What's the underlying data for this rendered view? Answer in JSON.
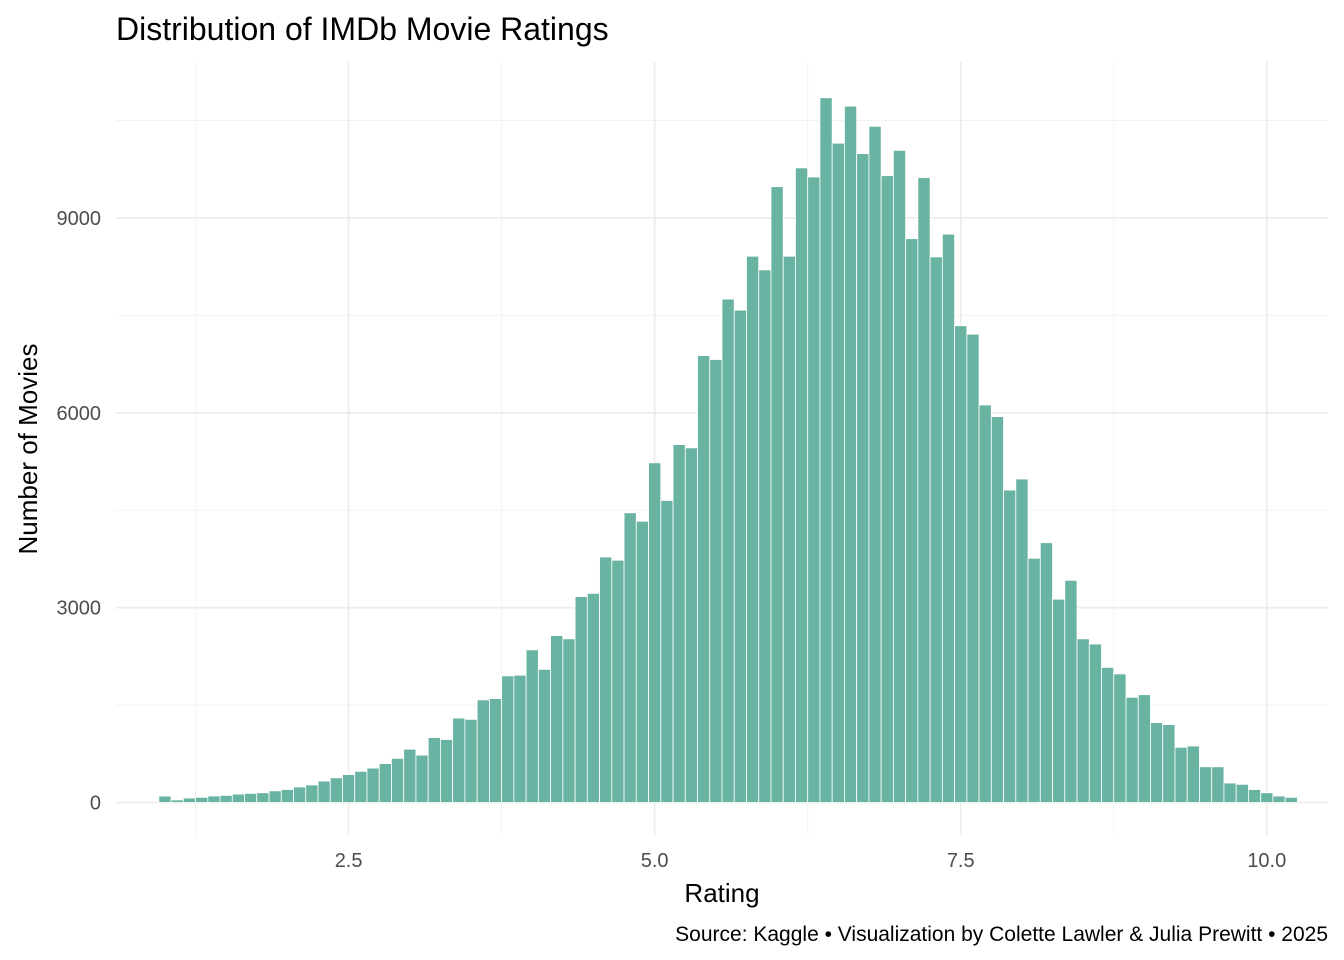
{
  "chart_data": {
    "type": "bar",
    "title": "Distribution of IMDb Movie Ratings",
    "xlabel": "Rating",
    "ylabel": "Number of Movies",
    "caption": "Source: Kaggle • Visualization by Colette Lawler & Julia Prewitt • 2025",
    "xlim": [
      0.6,
      10.5
    ],
    "ylim": [
      -500,
      11400
    ],
    "x_ticks": [
      2.5,
      5.0,
      7.5,
      10.0
    ],
    "x_tick_labels": [
      "2.5",
      "5.0",
      "7.5",
      "10.0"
    ],
    "y_ticks": [
      0,
      3000,
      6000,
      9000
    ],
    "y_tick_labels": [
      "0",
      "3000",
      "6000",
      "9000"
    ],
    "x_minor_ticks": [
      1.25,
      3.75,
      6.25,
      8.75
    ],
    "y_minor_ticks": [
      1500,
      4500,
      7500,
      10500
    ],
    "grid": true,
    "bar_color": "#69b3a2",
    "bins": {
      "start": 1.0,
      "width": 0.1,
      "counts": [
        100,
        40,
        70,
        80,
        100,
        110,
        130,
        140,
        150,
        180,
        200,
        240,
        270,
        330,
        380,
        430,
        480,
        530,
        600,
        680,
        820,
        730,
        1000,
        970,
        1300,
        1280,
        1580,
        1600,
        1950,
        1960,
        2350,
        2050,
        2570,
        2520,
        3170,
        3220,
        3780,
        3730,
        4460,
        4330,
        5230,
        4650,
        5510,
        5460,
        6880,
        6820,
        7750,
        7580,
        8410,
        8200,
        9480,
        8410,
        9770,
        9630,
        10850,
        10150,
        10720,
        9990,
        10410,
        9650,
        10040,
        8680,
        9620,
        8400,
        8750,
        7340,
        7210,
        6120,
        5940,
        4810,
        4980,
        3760,
        4000,
        3130,
        3420,
        2520,
        2440,
        2080,
        1980,
        1620,
        1660,
        1230,
        1200,
        850,
        870,
        550,
        550,
        300,
        280,
        200,
        150,
        100,
        80
      ]
    }
  }
}
